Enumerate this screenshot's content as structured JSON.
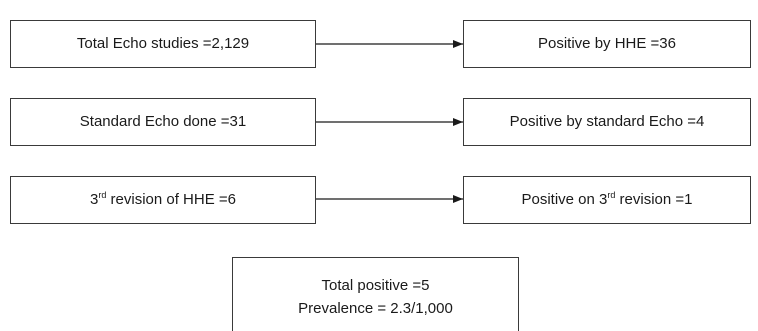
{
  "steps": [
    {
      "left": {
        "pre": "Total Echo studies =2,129",
        "sup": "",
        "post": ""
      },
      "right": {
        "pre": "Positive by HHE =36",
        "sup": "",
        "post": ""
      }
    },
    {
      "left": {
        "pre": "Standard Echo done =31",
        "sup": "",
        "post": ""
      },
      "right": {
        "pre": "Positive by standard Echo =4",
        "sup": "",
        "post": ""
      }
    },
    {
      "left": {
        "pre": "3",
        "sup": "rd",
        "post": " revision of HHE =6"
      },
      "right": {
        "pre": "Positive on 3",
        "sup": "rd",
        "post": " revision =1"
      }
    }
  ],
  "summary": {
    "line1": "Total positive =5",
    "line2": "Prevalence = 2.3/1,000"
  },
  "colors": {
    "border": "#3a3a3a",
    "arrow": "#1a1a1a",
    "text": "#1a1a1a",
    "background": "#ffffff"
  }
}
